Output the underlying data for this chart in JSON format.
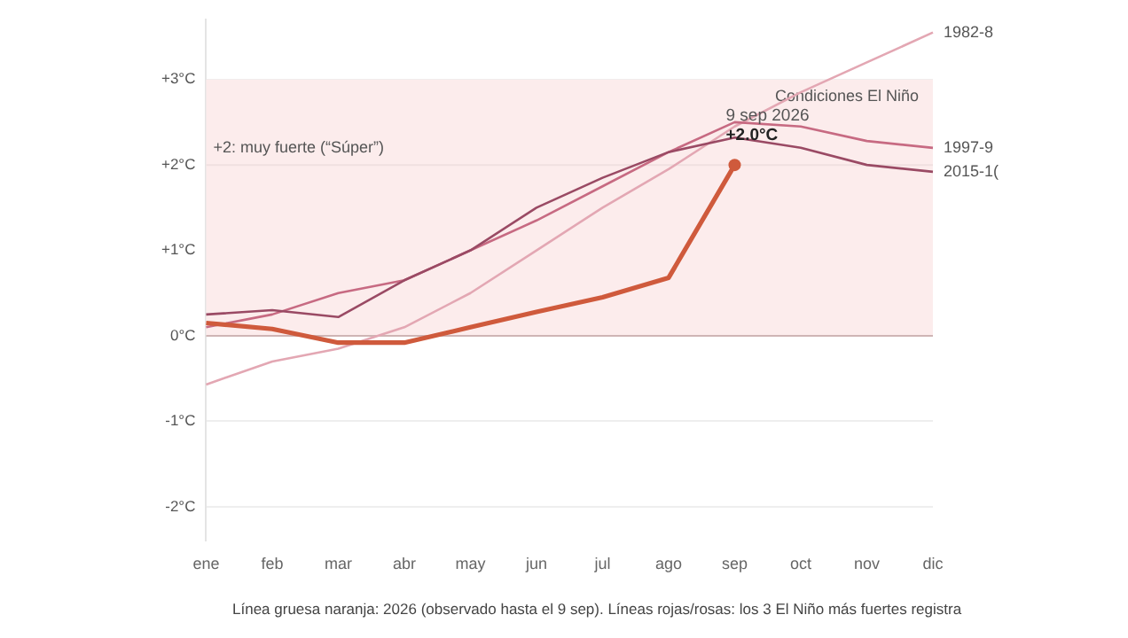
{
  "chart_data": {
    "type": "line",
    "categories": [
      "ene",
      "feb",
      "mar",
      "abr",
      "may",
      "jun",
      "jul",
      "ago",
      "sep",
      "oct",
      "nov",
      "dic"
    ],
    "series": [
      {
        "name": "1982-8",
        "color": "#e3a7b3",
        "values": [
          -0.57,
          -0.3,
          -0.15,
          0.1,
          0.5,
          1.0,
          1.5,
          1.95,
          2.45,
          2.85,
          3.2,
          3.55
        ]
      },
      {
        "name": "1997-9",
        "color": "#c76a82",
        "values": [
          0.1,
          0.25,
          0.5,
          0.65,
          1.0,
          1.35,
          1.75,
          2.15,
          2.5,
          2.45,
          2.28,
          2.2
        ]
      },
      {
        "name": "2015-1(",
        "color": "#9a4a64",
        "values": [
          0.25,
          0.3,
          0.22,
          0.65,
          1.0,
          1.5,
          1.85,
          2.15,
          2.32,
          2.2,
          2.0,
          1.92
        ]
      },
      {
        "color": "#cf5a3c",
        "values": [
          0.15,
          0.08,
          -0.08,
          -0.08,
          0.1,
          0.28,
          0.45,
          0.68,
          2.0,
          null,
          null,
          null
        ]
      }
    ],
    "ylim": [
      -2.4,
      3.7
    ],
    "yticks": [
      {
        "value": -2,
        "label": "-2°C"
      },
      {
        "value": -1,
        "label": "-1°C"
      },
      {
        "value": 0,
        "label": "0°C"
      },
      {
        "value": 1,
        "label": "+1°C"
      },
      {
        "value": 2,
        "label": "+2°C"
      },
      {
        "value": 3,
        "label": "+3°C"
      }
    ],
    "grid": "y",
    "legend": false,
    "bands": [
      {
        "axis": "y",
        "from": 0,
        "to": 3,
        "label": "Condiciones El Niño",
        "color": "#fcecec"
      }
    ],
    "ref_lines": [
      {
        "axis": "y",
        "value": 2,
        "label": "+2: muy fuerte (“Súper”)",
        "color": "#f0e0e0"
      }
    ],
    "annotations": [
      {
        "text": "9 sep 2026",
        "x": "sep",
        "y": 2.0
      },
      {
        "text": "+2.0°C",
        "x": "sep",
        "y": 2.0
      },
      "Línea gruesa naranja: 2026 (observado hasta el 9 sep). Líneas rojas/rosas: los 3 El Niño más fuertes registra"
    ]
  }
}
